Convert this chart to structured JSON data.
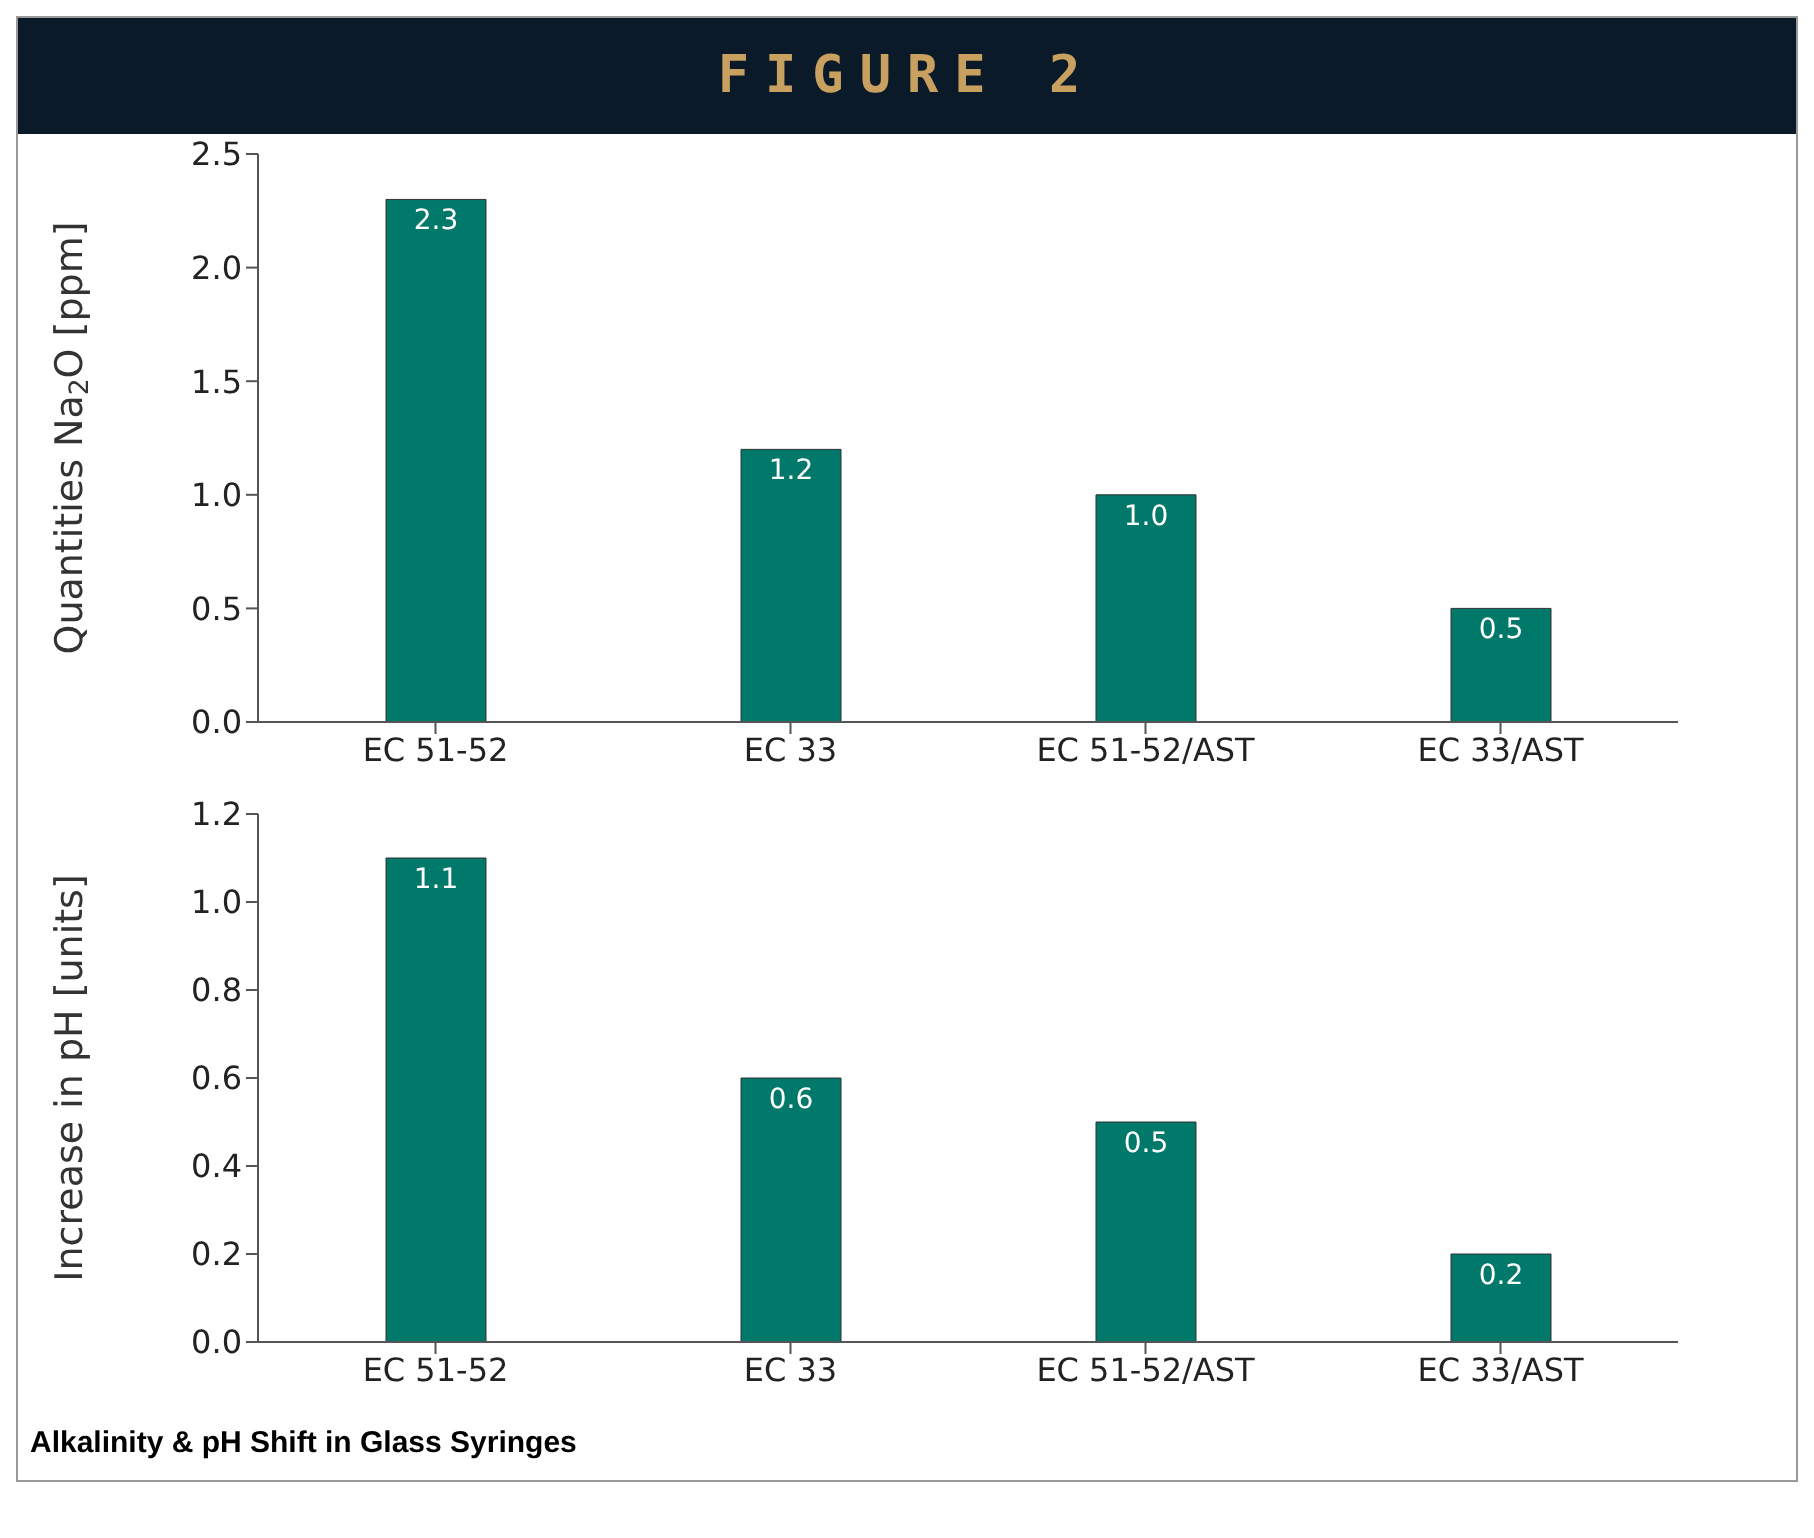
{
  "chart_data": [
    {
      "type": "bar",
      "title": "FIGURE 2",
      "ylabel": "Quantities Na$_{2}$O [ppm]",
      "categories": [
        "EC 51-52",
        "EC 33",
        "EC 51-52/AST",
        "EC 33/AST"
      ],
      "values": [
        2.3,
        1.2,
        1.0,
        0.5
      ],
      "value_labels": [
        "2.3",
        "1.2",
        "1.0",
        "0.5"
      ],
      "color": "#00786a",
      "ylim": [
        0,
        2.5
      ],
      "yticks": [
        {
          "value": 0,
          "label": "0.0"
        },
        {
          "value": 0.5,
          "label": "0.5"
        },
        {
          "value": 1,
          "label": "1.0"
        },
        {
          "value": 1.5,
          "label": "1.5"
        },
        {
          "value": 2,
          "label": "2.0"
        },
        {
          "value": 2.5,
          "label": "2.5"
        }
      ],
      "grid": false,
      "legend": false
    },
    {
      "type": "bar",
      "ylabel": "Increase in pH [units]",
      "categories": [
        "EC 51-52",
        "EC 33",
        "EC 51-52/AST",
        "EC 33/AST"
      ],
      "values": [
        1.1,
        0.6,
        0.5,
        0.2
      ],
      "value_labels": [
        "1.1",
        "0.6",
        "0.5",
        "0.2"
      ],
      "color": "#00786a",
      "ylim": [
        0,
        1.2
      ],
      "yticks": [
        {
          "value": 0,
          "label": "0.0"
        },
        {
          "value": 0.2,
          "label": "0.2"
        },
        {
          "value": 0.4,
          "label": "0.4"
        },
        {
          "value": 0.6,
          "label": "0.6"
        },
        {
          "value": 0.8,
          "label": "0.8"
        },
        {
          "value": 1,
          "label": "1.0"
        },
        {
          "value": 1.2,
          "label": "1.2"
        }
      ],
      "grid": false,
      "legend": false,
      "annotations": [
        "Alkalinity & pH Shift in Glass Syringes"
      ]
    }
  ]
}
